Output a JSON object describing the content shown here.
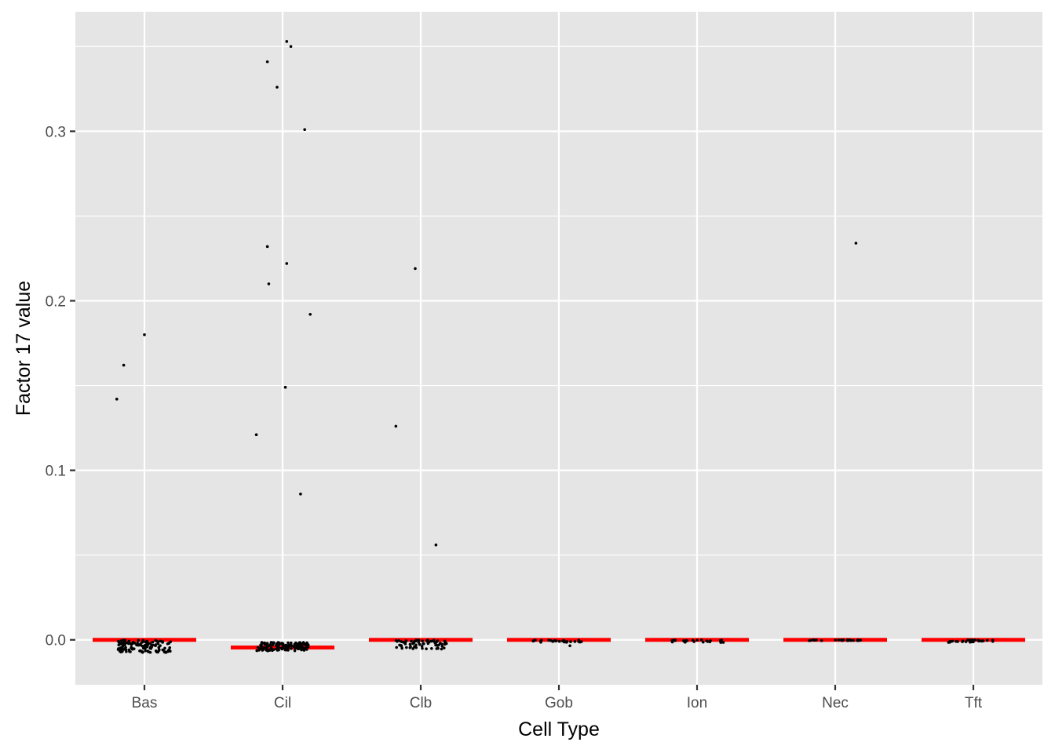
{
  "chart_data": {
    "type": "scatter",
    "title": "",
    "xlabel": "Cell Type",
    "ylabel": "Factor 17 value",
    "categories": [
      "Bas",
      "Cil",
      "Clb",
      "Gob",
      "Ion",
      "Nec",
      "Tft"
    ],
    "ylim": [
      -0.0265,
      0.3705
    ],
    "yticks": [
      0.0,
      0.1,
      0.2,
      0.3
    ],
    "ytick_labels": [
      "0.0",
      "0.1",
      "0.2",
      "0.3"
    ],
    "grid": true,
    "panel_background": "#e5e5e5",
    "grid_color": "#ffffff",
    "point_color": "#000000",
    "mean_line_color": "#ff0000",
    "means": [
      {
        "category": "Bas",
        "value": 0.0
      },
      {
        "category": "Cil",
        "value": -0.0045
      },
      {
        "category": "Clb",
        "value": 0.0
      },
      {
        "category": "Gob",
        "value": 0.0
      },
      {
        "category": "Ion",
        "value": 0.0
      },
      {
        "category": "Nec",
        "value": 0.0
      },
      {
        "category": "Tft",
        "value": 0.0
      }
    ],
    "outliers": [
      {
        "category": "Bas",
        "offset": -0.2,
        "value": 0.142
      },
      {
        "category": "Bas",
        "offset": -0.15,
        "value": 0.162
      },
      {
        "category": "Bas",
        "offset": 0.0,
        "value": 0.18
      },
      {
        "category": "Cil",
        "offset": -0.19,
        "value": 0.121
      },
      {
        "category": "Cil",
        "offset": -0.11,
        "value": 0.341
      },
      {
        "category": "Cil",
        "offset": -0.04,
        "value": 0.326
      },
      {
        "category": "Cil",
        "offset": 0.03,
        "value": 0.353
      },
      {
        "category": "Cil",
        "offset": 0.06,
        "value": 0.35
      },
      {
        "category": "Cil",
        "offset": 0.16,
        "value": 0.301
      },
      {
        "category": "Cil",
        "offset": -0.11,
        "value": 0.232
      },
      {
        "category": "Cil",
        "offset": 0.03,
        "value": 0.222
      },
      {
        "category": "Cil",
        "offset": -0.1,
        "value": 0.21
      },
      {
        "category": "Cil",
        "offset": 0.2,
        "value": 0.192
      },
      {
        "category": "Cil",
        "offset": 0.02,
        "value": 0.149
      },
      {
        "category": "Cil",
        "offset": 0.13,
        "value": 0.086
      },
      {
        "category": "Clb",
        "offset": -0.18,
        "value": 0.126
      },
      {
        "category": "Clb",
        "offset": -0.04,
        "value": 0.219
      },
      {
        "category": "Clb",
        "offset": 0.11,
        "value": 0.056
      },
      {
        "category": "Nec",
        "offset": 0.15,
        "value": 0.234
      }
    ],
    "clusters": [
      {
        "category": "Bas",
        "count": 120,
        "spread": 0.19,
        "min": -0.0075,
        "max": 0.0
      },
      {
        "category": "Cil",
        "count": 150,
        "spread": 0.19,
        "min": -0.0065,
        "max": -0.0015
      },
      {
        "category": "Clb",
        "count": 70,
        "spread": 0.19,
        "min": -0.0055,
        "max": 0.0
      },
      {
        "category": "Gob",
        "count": 25,
        "spread": 0.19,
        "min": -0.0015,
        "max": 0.0
      },
      {
        "category": "Ion",
        "count": 25,
        "spread": 0.19,
        "min": -0.0015,
        "max": 0.0
      },
      {
        "category": "Nec",
        "count": 30,
        "spread": 0.19,
        "min": -0.0005,
        "max": 0.0
      },
      {
        "category": "Tft",
        "count": 25,
        "spread": 0.19,
        "min": -0.0015,
        "max": 0.0
      }
    ],
    "extra_points": [
      {
        "category": "Gob",
        "offset": 0.08,
        "value": -0.0035
      },
      {
        "category": "Ion",
        "offset": 0.19,
        "value": -0.0015
      },
      {
        "category": "Tft",
        "offset": -0.18,
        "value": -0.0015
      }
    ]
  }
}
